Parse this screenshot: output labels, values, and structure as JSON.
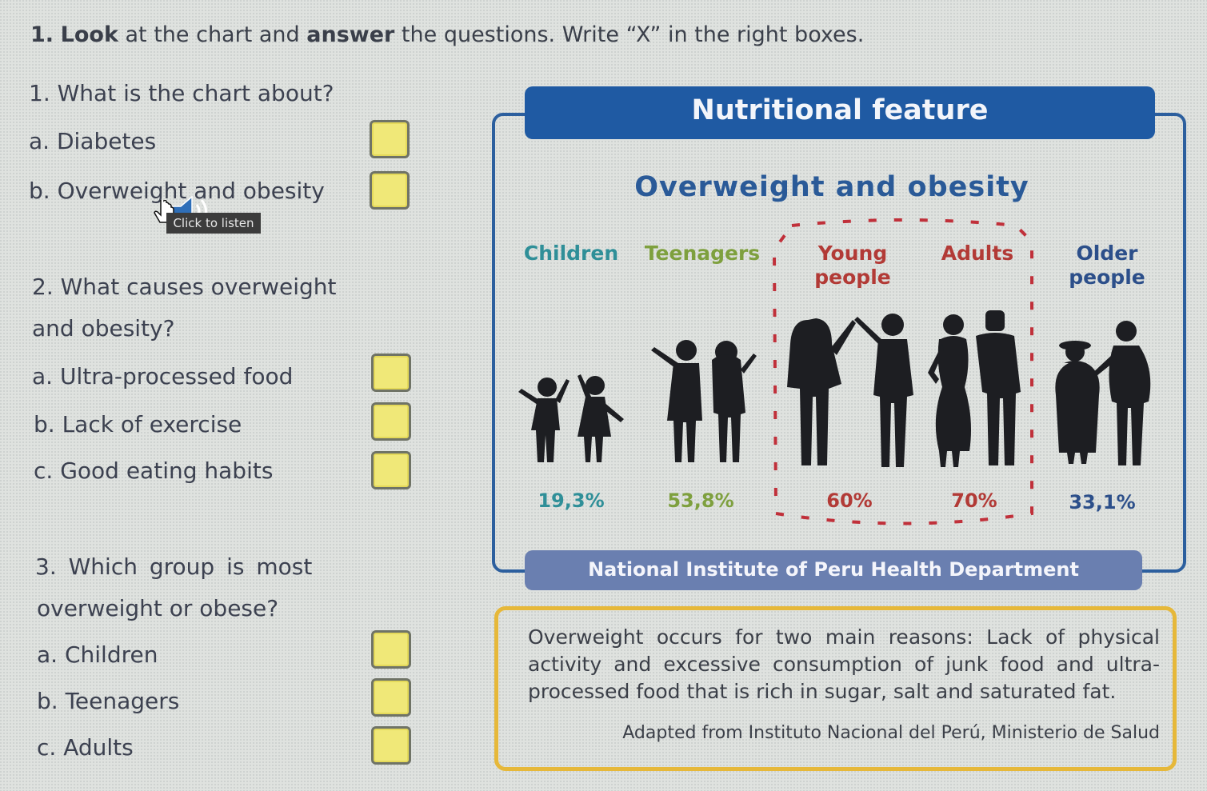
{
  "instructions": {
    "number": "1.",
    "bold1": "Look",
    "mid1": " at the chart and ",
    "bold2": "answer",
    "rest": " the questions. Write “X” in the right boxes."
  },
  "questions": [
    {
      "label": "1. What is the chart about?",
      "options": [
        {
          "label": "a. Diabetes"
        },
        {
          "label": "b. Overweight and obesity"
        }
      ]
    },
    {
      "label_line1": "2.  What causes overweight",
      "label_line2": "and obesity?",
      "options": [
        {
          "label": "a. Ultra-processed food"
        },
        {
          "label": "b. Lack of exercise"
        },
        {
          "label": "c. Good eating habits"
        }
      ]
    },
    {
      "label_line1": "3.  Which group is most",
      "label_line2": "overweight or obese?",
      "options": [
        {
          "label": "a. Children"
        },
        {
          "label": "b. Teenagers"
        },
        {
          "label": "c. Adults"
        }
      ]
    }
  ],
  "listen_button": {
    "label": "Click to listen"
  },
  "infographic": {
    "header": "Nutritional feature",
    "title": "Overweight and obesity",
    "source": "National Institute of Peru Health Department",
    "groups": [
      {
        "name_line1": "Children",
        "name_line2": "",
        "value": "19,3%",
        "color": "#2f8f98"
      },
      {
        "name_line1": "Teenagers",
        "name_line2": "",
        "value": "53,8%",
        "color": "#7ea03e"
      },
      {
        "name_line1": "Young",
        "name_line2": "people",
        "value": "60%",
        "color": "#b23a36"
      },
      {
        "name_line1": "Adults",
        "name_line2": "",
        "value": "70%",
        "color": "#b23a36"
      },
      {
        "name_line1": "Older",
        "name_line2": "people",
        "value": "33,1%",
        "color": "#2c4f8a"
      }
    ]
  },
  "note": {
    "text": "Overweight occurs for two main reasons: Lack of physical activity and excessive consumption of junk food and ultra-processed food that is rich in sugar, salt and saturated fat.",
    "credit": "Adapted from Instituto Nacional del Perú, Ministerio de Salud"
  },
  "colors": {
    "header_blue": "#1f5aa3",
    "source_bar": "#6a7fb0",
    "note_border": "#e6b83a",
    "checkbox_fill": "#f0e878"
  }
}
